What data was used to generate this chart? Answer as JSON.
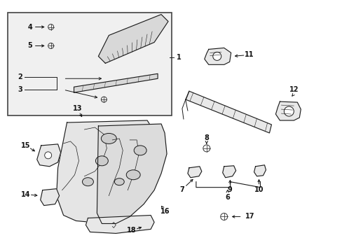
{
  "bg_color": "#ffffff",
  "inset_bg": "#f0f0f0",
  "inset_border": "#444444",
  "line_color": "#1a1a1a",
  "text_color": "#111111",
  "fig_width": 4.89,
  "fig_height": 3.6,
  "dpi": 100
}
